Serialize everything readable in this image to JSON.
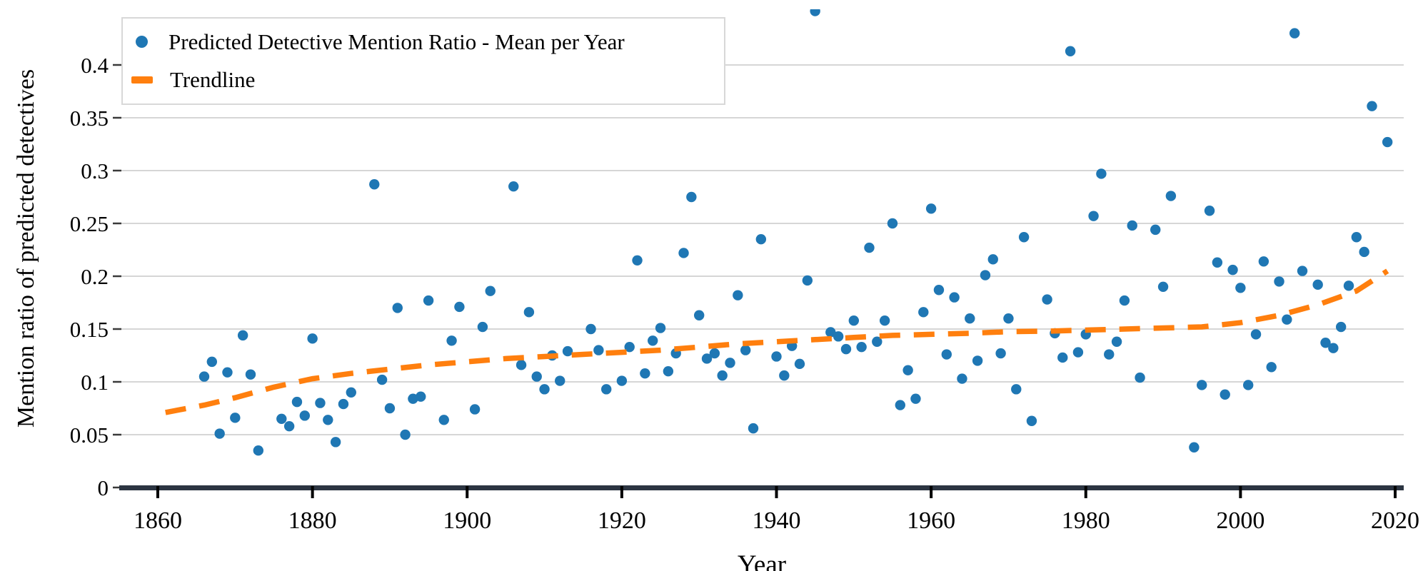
{
  "figure": {
    "x_axis_title": "Year",
    "y_axis_title": "Mention ratio of predicted detectives"
  },
  "legend": {
    "items": [
      {
        "label": "Predicted Detective Mention Ratio - Mean per Year",
        "marker": "dot-icon",
        "color": "#1f77b4"
      },
      {
        "label": "Trendline",
        "marker": "dash-icon",
        "color": "#ff7f0e"
      }
    ]
  },
  "colors": {
    "scatter": "#1f77b4",
    "trendline": "#ff7f0e",
    "gridline": "#d6d6d6",
    "axis_line": "#2c3542",
    "tick": "#000000",
    "text": "#000000"
  },
  "chart_data": {
    "type": "scatter",
    "title": "",
    "xlabel": "Year",
    "ylabel": "Mention ratio of predicted detectives",
    "xlim": [
      1855,
      2021.3
    ],
    "ylim": [
      0,
      0.4527
    ],
    "grid": "horizontal",
    "legend_position": "upper-left",
    "x_ticks": [
      1860,
      1880,
      1900,
      1920,
      1940,
      1960,
      1980,
      2000,
      2020
    ],
    "x_tick_labels": [
      "1860",
      "1880",
      "1900",
      "1920",
      "1940",
      "1960",
      "1980",
      "2000",
      "2020"
    ],
    "y_ticks": [
      0,
      0.05,
      0.1,
      0.15,
      0.2,
      0.25,
      0.3,
      0.35,
      0.4
    ],
    "y_tick_labels": [
      "0",
      "0.05",
      "0.1",
      "0.15",
      "0.2",
      "0.25",
      "0.3",
      "0.35",
      "0.4"
    ],
    "series": [
      {
        "name": "Predicted Detective Mention Ratio - Mean per Year",
        "type": "scatter",
        "color": "#1f77b4",
        "points": [
          [
            1866,
            0.105
          ],
          [
            1867,
            0.119
          ],
          [
            1868,
            0.051
          ],
          [
            1869,
            0.109
          ],
          [
            1870,
            0.066
          ],
          [
            1871,
            0.144
          ],
          [
            1872,
            0.107
          ],
          [
            1873,
            0.035
          ],
          [
            1876,
            0.065
          ],
          [
            1877,
            0.058
          ],
          [
            1878,
            0.081
          ],
          [
            1879,
            0.068
          ],
          [
            1880,
            0.141
          ],
          [
            1881,
            0.08
          ],
          [
            1882,
            0.064
          ],
          [
            1883,
            0.043
          ],
          [
            1884,
            0.079
          ],
          [
            1885,
            0.09
          ],
          [
            1888,
            0.287
          ],
          [
            1889,
            0.102
          ],
          [
            1890,
            0.075
          ],
          [
            1891,
            0.17
          ],
          [
            1892,
            0.05
          ],
          [
            1893,
            0.084
          ],
          [
            1894,
            0.086
          ],
          [
            1895,
            0.177
          ],
          [
            1897,
            0.064
          ],
          [
            1898,
            0.139
          ],
          [
            1899,
            0.171
          ],
          [
            1901,
            0.074
          ],
          [
            1902,
            0.152
          ],
          [
            1903,
            0.186
          ],
          [
            1906,
            0.285
          ],
          [
            1907,
            0.116
          ],
          [
            1908,
            0.166
          ],
          [
            1909,
            0.105
          ],
          [
            1910,
            0.093
          ],
          [
            1911,
            0.125
          ],
          [
            1912,
            0.101
          ],
          [
            1913,
            0.129
          ],
          [
            1916,
            0.15
          ],
          [
            1917,
            0.13
          ],
          [
            1918,
            0.093
          ],
          [
            1920,
            0.101
          ],
          [
            1921,
            0.133
          ],
          [
            1922,
            0.215
          ],
          [
            1923,
            0.108
          ],
          [
            1924,
            0.139
          ],
          [
            1925,
            0.151
          ],
          [
            1926,
            0.11
          ],
          [
            1927,
            0.127
          ],
          [
            1928,
            0.222
          ],
          [
            1929,
            0.275
          ],
          [
            1930,
            0.163
          ],
          [
            1931,
            0.122
          ],
          [
            1932,
            0.127
          ],
          [
            1933,
            0.106
          ],
          [
            1934,
            0.118
          ],
          [
            1935,
            0.182
          ],
          [
            1936,
            0.13
          ],
          [
            1937,
            0.056
          ],
          [
            1938,
            0.235
          ],
          [
            1940,
            0.124
          ],
          [
            1941,
            0.106
          ],
          [
            1942,
            0.134
          ],
          [
            1943,
            0.117
          ],
          [
            1944,
            0.196
          ],
          [
            1945,
            0.451
          ],
          [
            1947,
            0.147
          ],
          [
            1948,
            0.143
          ],
          [
            1949,
            0.131
          ],
          [
            1950,
            0.158
          ],
          [
            1951,
            0.133
          ],
          [
            1952,
            0.227
          ],
          [
            1953,
            0.138
          ],
          [
            1954,
            0.158
          ],
          [
            1955,
            0.25
          ],
          [
            1956,
            0.078
          ],
          [
            1957,
            0.111
          ],
          [
            1958,
            0.084
          ],
          [
            1959,
            0.166
          ],
          [
            1960,
            0.264
          ],
          [
            1961,
            0.187
          ],
          [
            1962,
            0.126
          ],
          [
            1963,
            0.18
          ],
          [
            1964,
            0.103
          ],
          [
            1965,
            0.16
          ],
          [
            1966,
            0.12
          ],
          [
            1967,
            0.201
          ],
          [
            1968,
            0.216
          ],
          [
            1969,
            0.127
          ],
          [
            1970,
            0.16
          ],
          [
            1971,
            0.093
          ],
          [
            1972,
            0.237
          ],
          [
            1973,
            0.063
          ],
          [
            1975,
            0.178
          ],
          [
            1976,
            0.146
          ],
          [
            1977,
            0.123
          ],
          [
            1978,
            0.413
          ],
          [
            1979,
            0.128
          ],
          [
            1980,
            0.145
          ],
          [
            1981,
            0.257
          ],
          [
            1982,
            0.297
          ],
          [
            1983,
            0.126
          ],
          [
            1984,
            0.138
          ],
          [
            1985,
            0.177
          ],
          [
            1986,
            0.248
          ],
          [
            1987,
            0.104
          ],
          [
            1989,
            0.244
          ],
          [
            1990,
            0.19
          ],
          [
            1991,
            0.276
          ],
          [
            1994,
            0.038
          ],
          [
            1995,
            0.097
          ],
          [
            1996,
            0.262
          ],
          [
            1997,
            0.213
          ],
          [
            1998,
            0.088
          ],
          [
            1999,
            0.206
          ],
          [
            2000,
            0.189
          ],
          [
            2001,
            0.097
          ],
          [
            2002,
            0.145
          ],
          [
            2003,
            0.214
          ],
          [
            2004,
            0.114
          ],
          [
            2005,
            0.195
          ],
          [
            2006,
            0.159
          ],
          [
            2007,
            0.43
          ],
          [
            2008,
            0.205
          ],
          [
            2010,
            0.192
          ],
          [
            2011,
            0.137
          ],
          [
            2012,
            0.132
          ],
          [
            2013,
            0.152
          ],
          [
            2014,
            0.191
          ],
          [
            2015,
            0.237
          ],
          [
            2016,
            0.223
          ],
          [
            2017,
            0.361
          ],
          [
            2019,
            0.327
          ]
        ]
      },
      {
        "name": "Trendline",
        "type": "dashed-line",
        "color": "#ff7f0e",
        "points": [
          [
            1861,
            0.071
          ],
          [
            1866,
            0.078
          ],
          [
            1870,
            0.085
          ],
          [
            1875,
            0.095
          ],
          [
            1880,
            0.103
          ],
          [
            1885,
            0.108
          ],
          [
            1890,
            0.112
          ],
          [
            1895,
            0.116
          ],
          [
            1900,
            0.119
          ],
          [
            1905,
            0.122
          ],
          [
            1910,
            0.124
          ],
          [
            1915,
            0.126
          ],
          [
            1920,
            0.128
          ],
          [
            1925,
            0.13
          ],
          [
            1930,
            0.133
          ],
          [
            1935,
            0.136
          ],
          [
            1940,
            0.138
          ],
          [
            1945,
            0.14
          ],
          [
            1950,
            0.142
          ],
          [
            1955,
            0.144
          ],
          [
            1960,
            0.145
          ],
          [
            1965,
            0.146
          ],
          [
            1970,
            0.1475
          ],
          [
            1975,
            0.148
          ],
          [
            1980,
            0.149
          ],
          [
            1985,
            0.15
          ],
          [
            1990,
            0.151
          ],
          [
            1995,
            0.152
          ],
          [
            2000,
            0.156
          ],
          [
            2005,
            0.163
          ],
          [
            2010,
            0.173
          ],
          [
            2015,
            0.186
          ],
          [
            2019,
            0.205
          ]
        ]
      }
    ]
  }
}
